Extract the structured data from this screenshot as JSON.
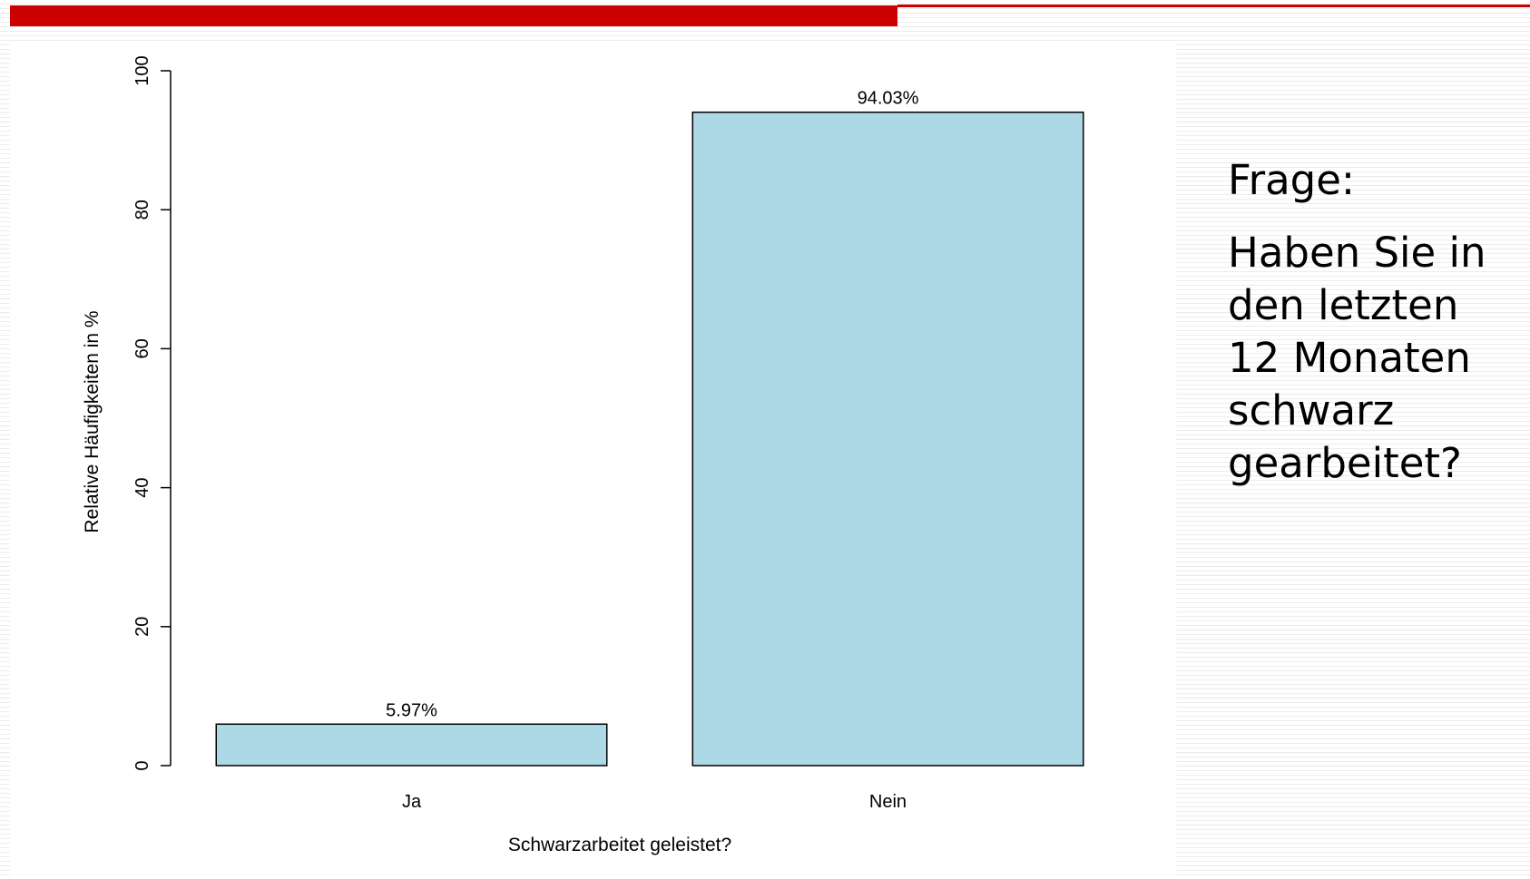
{
  "slide": {
    "accent_color": "#cc0000",
    "question_label": "Frage:",
    "question_text": "Haben Sie in den letzten 12 Monaten schwarz gearbeitet?"
  },
  "chart_data": {
    "type": "bar",
    "categories": [
      "Ja",
      "Nein"
    ],
    "values": [
      5.97,
      94.03
    ],
    "value_labels": [
      "5.97%",
      "94.03%"
    ],
    "title": "",
    "xlabel": "Schwarzarbeitet geleistet?",
    "ylabel": "Relative Häufigkeiten in %",
    "ylim": [
      0,
      100
    ],
    "yticks": [
      0,
      20,
      40,
      60,
      80,
      100
    ],
    "bar_color": "#add8e6",
    "bar_edge_color": "#000000",
    "grid": false,
    "legend": "none"
  }
}
